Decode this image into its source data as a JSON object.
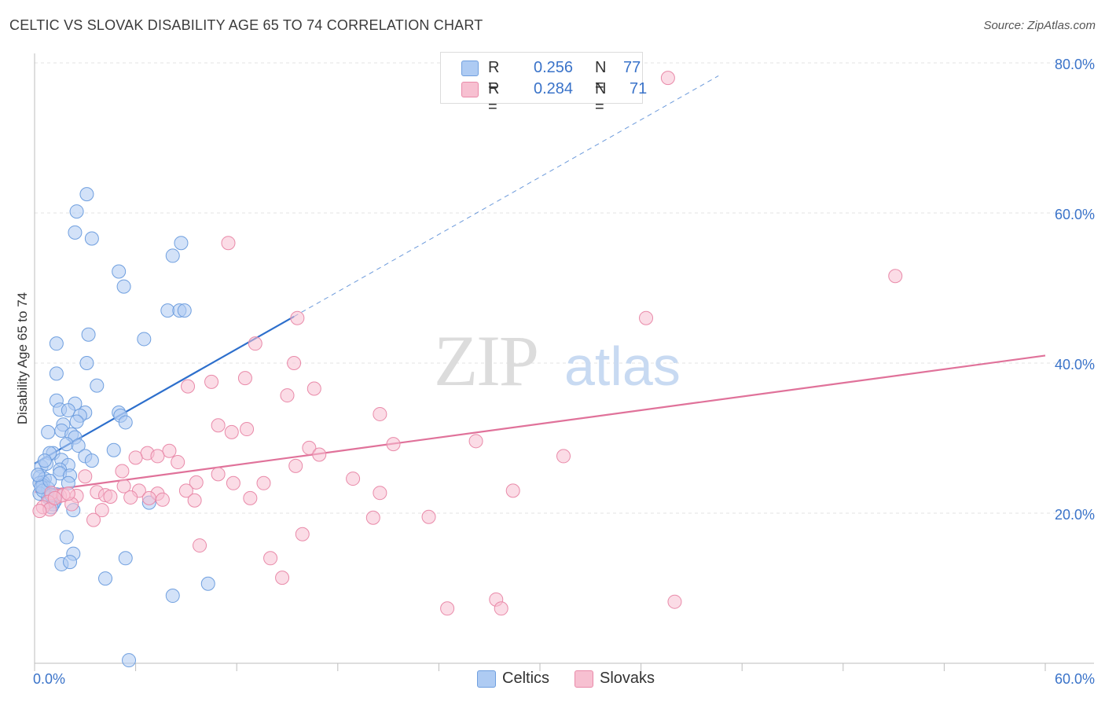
{
  "title": "CELTIC VS SLOVAK DISABILITY AGE 65 TO 74 CORRELATION CHART",
  "source": "Source: ZipAtlas.com",
  "watermark": {
    "zip": "ZIP",
    "atlas": "atlas"
  },
  "colors": {
    "celtics_fill": "#aecbf3",
    "celtics_stroke": "#6f9fdf",
    "celtics_line": "#2d6fcc",
    "slovaks_fill": "#f7c0d1",
    "slovaks_stroke": "#e98aa9",
    "slovaks_line": "#e0729a",
    "axis_label": "#3a73c9",
    "grid": "#e3e3e3"
  },
  "legend": {
    "rows": [
      {
        "r_label": "R =",
        "r_value": "0.256",
        "n_label": "N =",
        "n_value": "77"
      },
      {
        "r_label": "R =",
        "r_value": "0.284",
        "n_label": "N =",
        "n_value": "71"
      }
    ]
  },
  "chart_data": {
    "type": "scatter",
    "title": "CELTIC VS SLOVAK DISABILITY AGE 65 TO 74 CORRELATION CHART",
    "ylabel": "Disability Age 65 to 74",
    "xlabel": "",
    "xlim": [
      0,
      60
    ],
    "ylim": [
      0,
      80
    ],
    "x_tick_labels": [
      "0.0%",
      "60.0%"
    ],
    "y_ticks": [
      20,
      40,
      60,
      80
    ],
    "y_tick_labels": [
      "20.0%",
      "40.0%",
      "60.0%",
      "80.0%"
    ],
    "x_minor_ticks": [
      0,
      6,
      12,
      18,
      24,
      30,
      36,
      42,
      48,
      54,
      60
    ],
    "series": [
      {
        "name": "Celtics",
        "r": 0.256,
        "n": 77,
        "trend": {
          "x_start": 0,
          "y_start": 26.6,
          "x_end": 15.4,
          "y_end": 46.2,
          "dashed_x_end": 40.6
        },
        "points": [
          [
            3.1,
            62.5
          ],
          [
            2.5,
            60.2
          ],
          [
            2.4,
            57.4
          ],
          [
            3.4,
            56.6
          ],
          [
            8.7,
            56.0
          ],
          [
            8.2,
            54.3
          ],
          [
            5.0,
            52.2
          ],
          [
            5.3,
            50.2
          ],
          [
            7.9,
            47.0
          ],
          [
            8.6,
            47.0
          ],
          [
            8.9,
            47.0
          ],
          [
            3.2,
            43.8
          ],
          [
            6.5,
            43.2
          ],
          [
            1.3,
            42.6
          ],
          [
            3.1,
            40.0
          ],
          [
            1.3,
            38.6
          ],
          [
            3.7,
            37.0
          ],
          [
            1.3,
            35.0
          ],
          [
            2.4,
            34.6
          ],
          [
            1.5,
            33.8
          ],
          [
            2.0,
            33.7
          ],
          [
            3.0,
            33.4
          ],
          [
            5.0,
            33.4
          ],
          [
            2.7,
            33.0
          ],
          [
            5.1,
            33.0
          ],
          [
            2.5,
            32.2
          ],
          [
            1.7,
            31.8
          ],
          [
            5.4,
            32.1
          ],
          [
            1.6,
            31.0
          ],
          [
            0.8,
            30.8
          ],
          [
            2.2,
            30.5
          ],
          [
            2.4,
            30.1
          ],
          [
            1.9,
            29.2
          ],
          [
            2.6,
            29.0
          ],
          [
            4.7,
            28.4
          ],
          [
            1.1,
            28.0
          ],
          [
            0.9,
            28.0
          ],
          [
            3.0,
            27.6
          ],
          [
            3.4,
            27.0
          ],
          [
            1.6,
            27.1
          ],
          [
            0.4,
            26.2
          ],
          [
            2.0,
            26.4
          ],
          [
            0.7,
            26.6
          ],
          [
            1.5,
            25.8
          ],
          [
            1.5,
            25.3
          ],
          [
            2.1,
            25.0
          ],
          [
            0.3,
            24.8
          ],
          [
            0.6,
            24.6
          ],
          [
            0.5,
            24.1
          ],
          [
            0.3,
            24.0
          ],
          [
            0.5,
            23.7
          ],
          [
            0.8,
            23.3
          ],
          [
            0.3,
            22.6
          ],
          [
            0.8,
            22.1
          ],
          [
            0.9,
            22.0
          ],
          [
            1.2,
            21.6
          ],
          [
            1.1,
            21.2
          ],
          [
            1.0,
            20.8
          ],
          [
            2.3,
            20.4
          ],
          [
            6.8,
            21.4
          ],
          [
            1.9,
            16.8
          ],
          [
            2.3,
            14.6
          ],
          [
            5.4,
            14.0
          ],
          [
            1.6,
            13.2
          ],
          [
            2.1,
            13.5
          ],
          [
            4.2,
            11.3
          ],
          [
            10.3,
            10.6
          ],
          [
            8.2,
            9.0
          ],
          [
            5.6,
            0.4
          ],
          [
            0.5,
            23.0
          ],
          [
            0.4,
            23.5
          ],
          [
            0.2,
            25.1
          ],
          [
            1.3,
            22.5
          ],
          [
            1.0,
            22.4
          ],
          [
            0.6,
            27.0
          ],
          [
            2.0,
            24.0
          ],
          [
            0.9,
            24.3
          ]
        ]
      },
      {
        "name": "Slovaks",
        "r": 0.284,
        "n": 71,
        "trend": {
          "x_start": 0,
          "y_start": 22.8,
          "x_end": 60,
          "y_end": 41.0
        },
        "points": [
          [
            37.6,
            78.0
          ],
          [
            11.5,
            56.0
          ],
          [
            51.1,
            51.6
          ],
          [
            15.6,
            46.0
          ],
          [
            36.3,
            46.0
          ],
          [
            13.1,
            42.6
          ],
          [
            15.4,
            40.0
          ],
          [
            12.5,
            38.0
          ],
          [
            10.5,
            37.5
          ],
          [
            9.1,
            36.9
          ],
          [
            16.6,
            36.6
          ],
          [
            15.0,
            35.7
          ],
          [
            20.5,
            33.2
          ],
          [
            10.9,
            31.7
          ],
          [
            12.6,
            31.2
          ],
          [
            11.7,
            30.8
          ],
          [
            26.2,
            29.6
          ],
          [
            21.3,
            29.2
          ],
          [
            16.3,
            28.7
          ],
          [
            8.0,
            28.3
          ],
          [
            16.9,
            27.8
          ],
          [
            31.4,
            27.6
          ],
          [
            6.7,
            28.0
          ],
          [
            7.3,
            27.6
          ],
          [
            6.0,
            27.4
          ],
          [
            8.5,
            26.8
          ],
          [
            15.5,
            26.3
          ],
          [
            5.2,
            25.6
          ],
          [
            10.9,
            25.2
          ],
          [
            3.0,
            24.9
          ],
          [
            18.9,
            24.6
          ],
          [
            11.8,
            24.0
          ],
          [
            13.6,
            24.0
          ],
          [
            9.6,
            24.1
          ],
          [
            5.3,
            23.6
          ],
          [
            28.4,
            23.0
          ],
          [
            20.5,
            22.7
          ],
          [
            9.0,
            23.0
          ],
          [
            6.2,
            23.0
          ],
          [
            7.3,
            22.6
          ],
          [
            3.7,
            22.8
          ],
          [
            4.2,
            22.4
          ],
          [
            4.5,
            22.2
          ],
          [
            5.7,
            22.1
          ],
          [
            12.8,
            22.0
          ],
          [
            6.8,
            22.0
          ],
          [
            7.6,
            21.8
          ],
          [
            1.5,
            22.3
          ],
          [
            1.0,
            22.7
          ],
          [
            2.5,
            22.3
          ],
          [
            1.7,
            22.4
          ],
          [
            9.5,
            21.7
          ],
          [
            2.2,
            21.2
          ],
          [
            0.8,
            21.5
          ],
          [
            0.5,
            20.8
          ],
          [
            0.9,
            20.5
          ],
          [
            4.0,
            20.4
          ],
          [
            3.5,
            19.1
          ],
          [
            20.1,
            19.4
          ],
          [
            23.4,
            19.5
          ],
          [
            9.8,
            15.7
          ],
          [
            15.9,
            17.2
          ],
          [
            14.0,
            14.0
          ],
          [
            14.7,
            11.4
          ],
          [
            27.4,
            8.5
          ],
          [
            27.7,
            7.3
          ],
          [
            24.5,
            7.3
          ],
          [
            38.0,
            8.2
          ],
          [
            2.0,
            22.6
          ],
          [
            1.2,
            22.0
          ],
          [
            0.3,
            20.3
          ]
        ]
      }
    ]
  },
  "bottom_legend": {
    "celtics": "Celtics",
    "slovaks": "Slovaks"
  }
}
